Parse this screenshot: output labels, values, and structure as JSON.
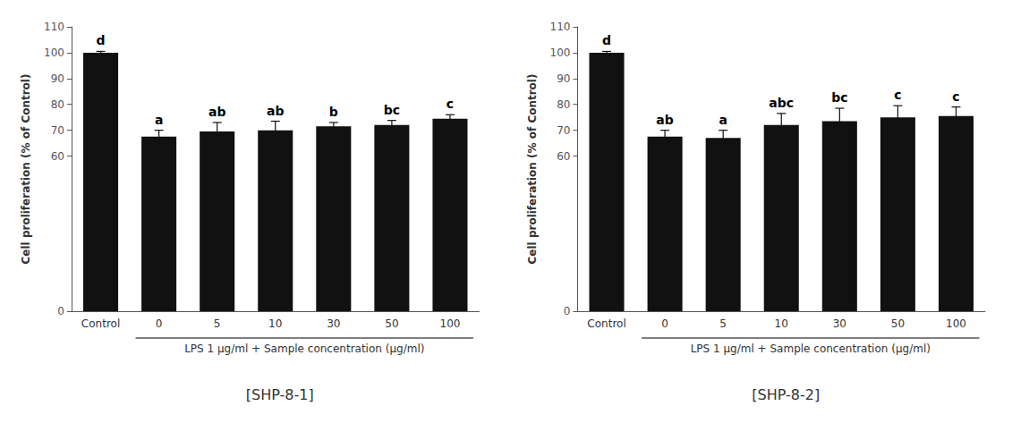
{
  "chart_data": [
    {
      "type": "bar",
      "title": "[SHP-8-1]",
      "categories": [
        "Control",
        "0",
        "5",
        "10",
        "30",
        "50",
        "100"
      ],
      "values": [
        100.0,
        67.5,
        69.5,
        70.0,
        71.5,
        72.0,
        74.5
      ],
      "errors": [
        0.5,
        2.5,
        3.5,
        3.5,
        1.5,
        1.8,
        1.5
      ],
      "letters": [
        "d",
        "a",
        "ab",
        "ab",
        "b",
        "bc",
        "c"
      ],
      "xlabel": "LPS 1 μg/ml + Sample concentration (μg/ml)",
      "ylabel": "Cell proliferation (% of Control)",
      "color": "#111111",
      "ylim": [
        0,
        110
      ],
      "yticks": [
        0,
        60,
        70,
        80,
        90,
        100,
        110
      ],
      "grid": false
    },
    {
      "type": "bar",
      "title": "[SHP-8-2]",
      "categories": [
        "Control",
        "0",
        "5",
        "10",
        "30",
        "50",
        "100"
      ],
      "values": [
        100.0,
        67.5,
        67.0,
        72.0,
        73.5,
        75.0,
        75.5
      ],
      "errors": [
        0.5,
        2.5,
        3.0,
        4.5,
        5.0,
        4.5,
        3.5
      ],
      "letters": [
        "d",
        "ab",
        "a",
        "abc",
        "bc",
        "c",
        "c"
      ],
      "xlabel": "LPS 1 μg/ml + Sample concentration (μg/ml)",
      "ylabel": "Cell proliferation (% of Control)",
      "color": "#111111",
      "ylim": [
        0,
        110
      ],
      "yticks": [
        0,
        60,
        70,
        80,
        90,
        100,
        110
      ],
      "grid": false
    }
  ]
}
